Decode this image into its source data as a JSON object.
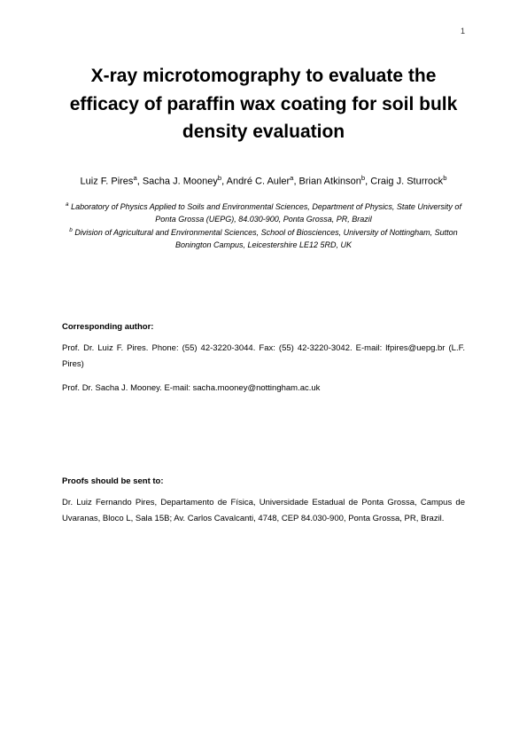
{
  "page": {
    "number": "1"
  },
  "title": "X-ray microtomography to evaluate the efficacy of paraffin wax coating for soil bulk density evaluation",
  "authors_html": "Luiz F. Pires<sup>a</sup>, Sacha J. Mooney<sup>b</sup>, André C. Auler<sup>a</sup>, Brian Atkinson<sup>b</sup>, Craig J. Sturrock<sup>b</sup>",
  "affiliations": {
    "a_html": "<sup>a</sup> Laboratory of Physics Applied to Soils and Environmental Sciences, Department of Physics, State University of Ponta Grossa (UEPG), 84.030-900, Ponta Grossa, PR, Brazil",
    "b_html": "<sup>b</sup> Division of Agricultural and Environmental Sciences, School of Biosciences, University of Nottingham, Sutton Bonington Campus, Leicestershire LE12 5RD, UK"
  },
  "corresponding": {
    "heading": "Corresponding author:",
    "line1": "Prof. Dr. Luiz F. Pires. Phone: (55) 42-3220-3044. Fax: (55) 42-3220-3042. E-mail: lfpires@uepg.br (L.F. Pires)",
    "line2": "Prof. Dr. Sacha J. Mooney. E-mail: sacha.mooney@nottingham.ac.uk"
  },
  "proofs": {
    "heading": "Proofs should be sent to:",
    "text": "Dr. Luiz Fernando Pires, Departamento de Física, Universidade Estadual de Ponta Grossa, Campus de Uvaranas, Bloco L, Sala 15B; Av. Carlos Cavalcanti, 4748, CEP 84.030-900, Ponta Grossa, PR, Brazil."
  }
}
